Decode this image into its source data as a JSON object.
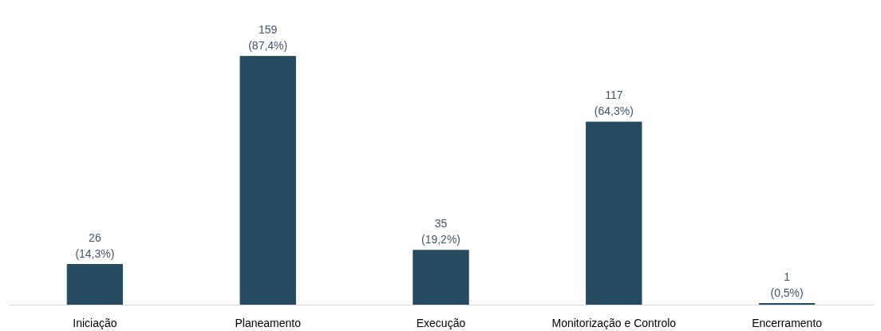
{
  "chart_data": {
    "type": "bar",
    "categories": [
      "Iniciação",
      "Planeamento",
      "Execução",
      "Monitorização e Controlo",
      "Encerramento"
    ],
    "values": [
      26,
      159,
      35,
      117,
      1
    ],
    "value_labels": [
      "26\n(14,3%)",
      "159\n(87,4%)",
      "35\n(19,2%)",
      "117\n(64,3%)",
      "1\n(0,5%)"
    ],
    "color": "#264a60",
    "grid": false
  }
}
